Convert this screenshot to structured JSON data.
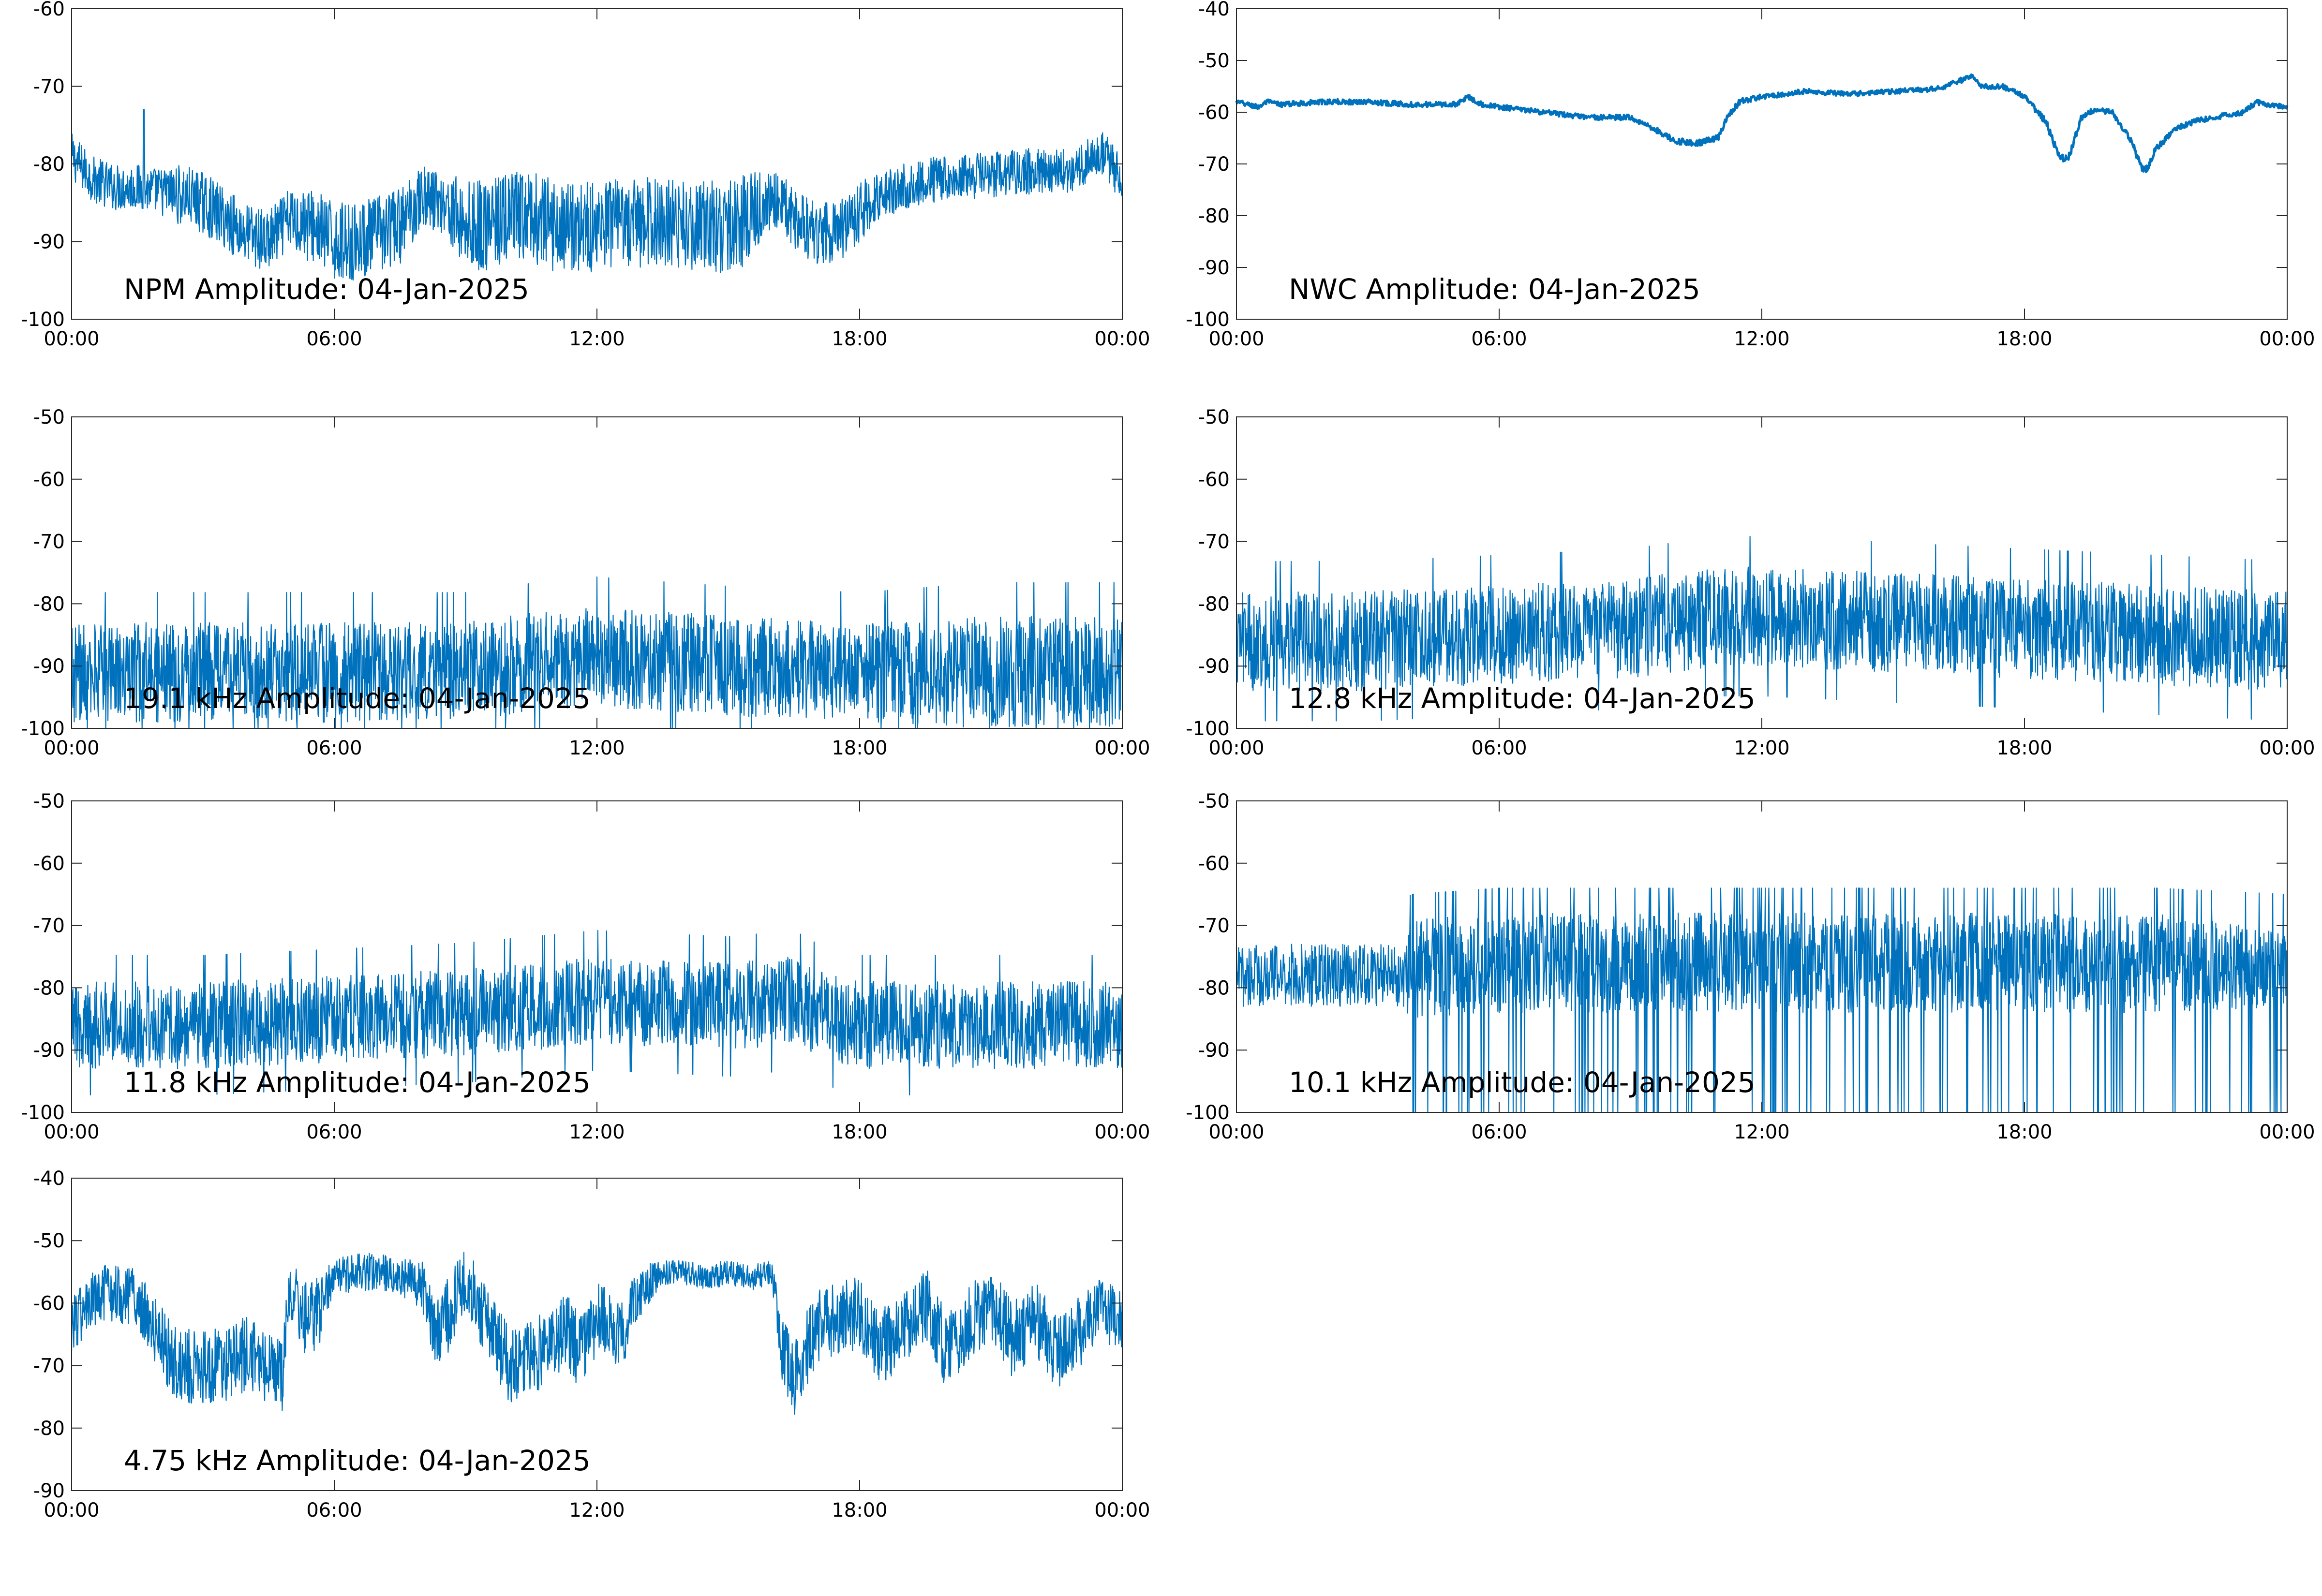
{
  "colors": {
    "line": "#0072bd",
    "axes": "#262626",
    "background": "#ffffff"
  },
  "chart_data": [
    {
      "type": "line",
      "title": "NPM Amplitude: 04-Jan-2025",
      "x": [
        "00:00",
        "24:00"
      ],
      "xticks": [
        "00:00",
        "06:00",
        "12:00",
        "18:00",
        "00:00"
      ],
      "ylim": [
        -100,
        -60
      ],
      "yticks": [
        -60,
        -70,
        -80,
        -90,
        -100
      ],
      "grid": false,
      "series": [
        {
          "hours": [
            0,
            0.5,
            1,
            1.5,
            2,
            2.5,
            3,
            3.5,
            4,
            4.5,
            5,
            5.5,
            6,
            6.5,
            7,
            7.5,
            8,
            8.5,
            9,
            9.5,
            10,
            10.5,
            11,
            11.5,
            12,
            12.5,
            13,
            13.5,
            14,
            14.5,
            15,
            15.5,
            16,
            16.5,
            17,
            17.5,
            18,
            18.5,
            19,
            19.5,
            20,
            20.5,
            21,
            21.5,
            22,
            22.5,
            23,
            23.5,
            24
          ],
          "mean": [
            -79,
            -82,
            -83,
            -83,
            -83.5,
            -84,
            -85,
            -87,
            -89,
            -90,
            -87,
            -88,
            -90,
            -90,
            -89,
            -88,
            -84,
            -85,
            -88,
            -88,
            -87,
            -87,
            -88,
            -88,
            -88,
            -88,
            -87.5,
            -87.5,
            -88,
            -88,
            -88,
            -87,
            -84,
            -87,
            -89,
            -89,
            -86,
            -84,
            -83,
            -82,
            -82,
            -81.5,
            -81.5,
            -81,
            -81,
            -81,
            -81,
            -78,
            -82
          ],
          "spread": [
            3,
            3,
            3,
            3,
            3,
            4,
            4,
            4,
            4,
            4,
            4,
            5,
            5,
            5,
            5,
            5,
            4,
            4,
            6,
            6,
            6,
            6,
            6,
            6,
            6,
            6,
            6,
            6,
            6,
            6,
            6,
            6,
            4,
            4,
            4,
            4,
            4,
            3,
            3,
            3,
            3,
            3,
            3,
            3,
            3,
            3,
            3,
            3,
            3
          ]
        }
      ]
    },
    {
      "type": "line",
      "title": "NWC Amplitude: 04-Jan-2025",
      "x": [
        "00:00",
        "24:00"
      ],
      "xticks": [
        "00:00",
        "06:00",
        "12:00",
        "18:00",
        "00:00"
      ],
      "ylim": [
        -100,
        -40
      ],
      "yticks": [
        -40,
        -50,
        -60,
        -70,
        -80,
        -90,
        -100
      ],
      "grid": false,
      "series": [
        {
          "hours": [
            0,
            0.5,
            0.7,
            1,
            2,
            3,
            4,
            5,
            5.3,
            5.6,
            6,
            7,
            8,
            9,
            9.5,
            10,
            10.5,
            11,
            11.2,
            11.5,
            12,
            13,
            14,
            15,
            16,
            16.5,
            16.8,
            17,
            17.5,
            18,
            18.5,
            18.8,
            19,
            19.3,
            19.6,
            20,
            20.4,
            20.7,
            20.8,
            21,
            21.5,
            22,
            23,
            23.3,
            23.5,
            24
          ],
          "mean": [
            -58,
            -59,
            -58,
            -58.5,
            -58,
            -58,
            -58.5,
            -58.5,
            -57,
            -58.5,
            -59,
            -60,
            -61,
            -61,
            -63,
            -65.5,
            -66,
            -65,
            -61,
            -58,
            -57,
            -56,
            -56.5,
            -56,
            -55.5,
            -54,
            -53,
            -55,
            -55,
            -57,
            -62,
            -69,
            -69,
            -61,
            -59.5,
            -60,
            -65,
            -71,
            -71,
            -67,
            -63,
            -61.5,
            -60,
            -58,
            -58.5,
            -59
          ],
          "spread": [
            0.5,
            0.5,
            0.5,
            0.5,
            0.5,
            0.5,
            0.5,
            0.5,
            0.5,
            0.5,
            0.5,
            0.5,
            0.5,
            0.5,
            0.5,
            0.6,
            0.6,
            0.6,
            0.6,
            0.6,
            0.5,
            0.5,
            0.5,
            0.5,
            0.5,
            0.5,
            0.5,
            0.5,
            0.5,
            0.5,
            0.7,
            0.8,
            0.8,
            0.6,
            0.5,
            0.5,
            0.7,
            0.8,
            0.8,
            0.6,
            0.5,
            0.5,
            0.5,
            0.5,
            0.5,
            0.5
          ]
        }
      ]
    },
    {
      "type": "line",
      "title": "19.1 kHz Amplitude: 04-Jan-2025",
      "x": [
        "00:00",
        "24:00"
      ],
      "xticks": [
        "00:00",
        "06:00",
        "12:00",
        "18:00",
        "00:00"
      ],
      "ylim": [
        -100,
        -50
      ],
      "yticks": [
        -50,
        -60,
        -70,
        -80,
        -90,
        -100
      ],
      "grid": false,
      "series": [
        {
          "hours": [
            0,
            3,
            6,
            9,
            10,
            11,
            12,
            13,
            15,
            18,
            21,
            24
          ],
          "mean": [
            -91,
            -91,
            -91,
            -91,
            -90,
            -89,
            -88.5,
            -89,
            -90,
            -91,
            -91,
            -91
          ],
          "spread": [
            8,
            8,
            8,
            8,
            8,
            8,
            8,
            8,
            8,
            8,
            9,
            9
          ]
        }
      ]
    },
    {
      "type": "line",
      "title": "12.8 kHz Amplitude: 04-Jan-2025",
      "x": [
        "00:00",
        "24:00"
      ],
      "xticks": [
        "00:00",
        "06:00",
        "12:00",
        "18:00",
        "00:00"
      ],
      "ylim": [
        -100,
        -50
      ],
      "yticks": [
        -50,
        -60,
        -70,
        -80,
        -90,
        -100
      ],
      "grid": false,
      "series": [
        {
          "hours": [
            0,
            3,
            6,
            9,
            11,
            12,
            15,
            18,
            21,
            24
          ],
          "mean": [
            -86,
            -86,
            -85,
            -84,
            -82,
            -82,
            -83,
            -84,
            -85,
            -86
          ],
          "spread": [
            8,
            8,
            8,
            8,
            8,
            8,
            8,
            8,
            8,
            8
          ]
        }
      ]
    },
    {
      "type": "line",
      "title": "11.8 kHz Amplitude: 04-Jan-2025",
      "x": [
        "00:00",
        "24:00"
      ],
      "xticks": [
        "00:00",
        "06:00",
        "12:00",
        "18:00",
        "00:00"
      ],
      "ylim": [
        -100,
        -50
      ],
      "yticks": [
        -50,
        -60,
        -70,
        -80,
        -90,
        -100
      ],
      "grid": false,
      "series": [
        {
          "hours": [
            0,
            3,
            6,
            9,
            12,
            15,
            16.5,
            17,
            18,
            21,
            24
          ],
          "mean": [
            -86,
            -86,
            -85,
            -84,
            -82,
            -83,
            -82,
            -84,
            -86,
            -86,
            -86
          ],
          "spread": [
            7,
            7,
            7,
            7,
            7,
            7,
            7,
            7,
            7,
            7,
            7
          ]
        }
      ]
    },
    {
      "type": "line",
      "title": "10.1 kHz Amplitude: 04-Jan-2025",
      "x": [
        "00:00",
        "24:00"
      ],
      "xticks": [
        "00:00",
        "06:00",
        "12:00",
        "18:00",
        "00:00"
      ],
      "ylim": [
        -100,
        -50
      ],
      "yticks": [
        -50,
        -60,
        -70,
        -80,
        -90,
        -100
      ],
      "grid": false,
      "series": [
        {
          "hours": [
            0,
            1,
            2,
            3,
            3.8,
            4,
            6,
            9,
            12,
            15,
            18,
            21,
            24
          ],
          "mean": [
            -78,
            -78,
            -78,
            -78,
            -78,
            -77,
            -76,
            -76,
            -76,
            -76,
            -76,
            -76,
            -77
          ],
          "spread": [
            5,
            5,
            5,
            5,
            5,
            8,
            8,
            8,
            8,
            8,
            8,
            8,
            6
          ]
        }
      ]
    },
    {
      "type": "line",
      "title": "4.75 kHz Amplitude: 04-Jan-2025",
      "x": [
        "00:00",
        "24:00"
      ],
      "xticks": [
        "00:00",
        "06:00",
        "12:00",
        "18:00",
        "00:00"
      ],
      "ylim": [
        -90,
        -40
      ],
      "yticks": [
        -40,
        -50,
        -60,
        -70,
        -80,
        -90
      ],
      "grid": false,
      "series": [
        {
          "hours": [
            0,
            0.5,
            1,
            1.5,
            2,
            2.5,
            3,
            3.5,
            4,
            4.5,
            4.8,
            5,
            5.3,
            5.6,
            6,
            6.5,
            7,
            7.5,
            8,
            8.3,
            8.6,
            9,
            9.5,
            10,
            10.5,
            11,
            11.3,
            11.6,
            12,
            12.5,
            13,
            13.5,
            14,
            14.5,
            15,
            15.5,
            16,
            16.2,
            16.5,
            17,
            17.5,
            18,
            18.5,
            19,
            19.5,
            20,
            20.5,
            21,
            21.5,
            22,
            22.5,
            23,
            23.5,
            24
          ],
          "mean": [
            -63,
            -60,
            -58,
            -59,
            -66,
            -70,
            -70,
            -70,
            -68,
            -70,
            -72,
            -58,
            -62,
            -62,
            -56,
            -55,
            -55,
            -56,
            -57,
            -64,
            -62,
            -56,
            -63,
            -70,
            -69,
            -66,
            -64,
            -68,
            -62,
            -66,
            -58,
            -55,
            -55,
            -56,
            -55,
            -56,
            -55,
            -66,
            -72,
            -64,
            -62,
            -62,
            -67,
            -64,
            -60,
            -68,
            -63,
            -60,
            -66,
            -62,
            -68,
            -65,
            -61,
            -63
          ],
          "spread": [
            5,
            5,
            5,
            5,
            6,
            6,
            6,
            6,
            6,
            6,
            6,
            5,
            6,
            6,
            3,
            3,
            3,
            3,
            4,
            6,
            6,
            5,
            6,
            6,
            6,
            6,
            6,
            6,
            6,
            6,
            4,
            2,
            2,
            2,
            2,
            2,
            2,
            6,
            6,
            6,
            6,
            6,
            6,
            6,
            6,
            6,
            6,
            6,
            6,
            6,
            6,
            6,
            5,
            5
          ]
        }
      ]
    }
  ]
}
